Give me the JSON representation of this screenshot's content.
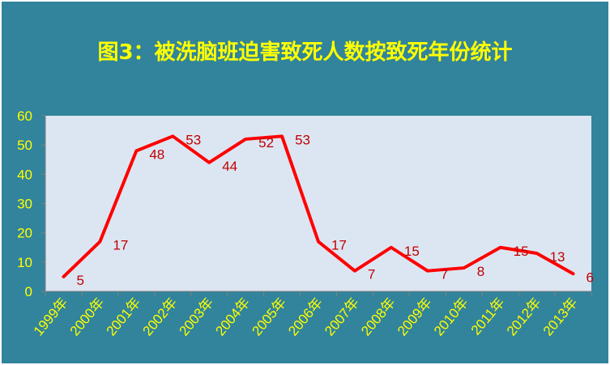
{
  "chart_data": {
    "type": "line",
    "title": "图3：被洗脑班迫害致死人数按致死年份统计",
    "categories": [
      "1999年",
      "2000年",
      "2001年",
      "2002年",
      "2003年",
      "2004年",
      "2005年",
      "2006年",
      "2007年",
      "2008年",
      "2009年",
      "2010年",
      "2011年",
      "2012年",
      "2013年"
    ],
    "series": [
      {
        "values": [
          5,
          17,
          48,
          53,
          44,
          52,
          53,
          17,
          7,
          15,
          7,
          8,
          15,
          13,
          6
        ],
        "color": "#FF0000"
      }
    ],
    "ylim": [
      0,
      60
    ],
    "yticks": [
      0,
      10,
      20,
      30,
      40,
      50,
      60
    ],
    "grid": false,
    "legend": "none",
    "data_labels": true,
    "colors": {
      "background": "#31849B",
      "plot_area": "#DCE6F2",
      "title": "#FFFF00",
      "tick_labels": "#FFFF00",
      "data_labels": "#C00000"
    }
  }
}
